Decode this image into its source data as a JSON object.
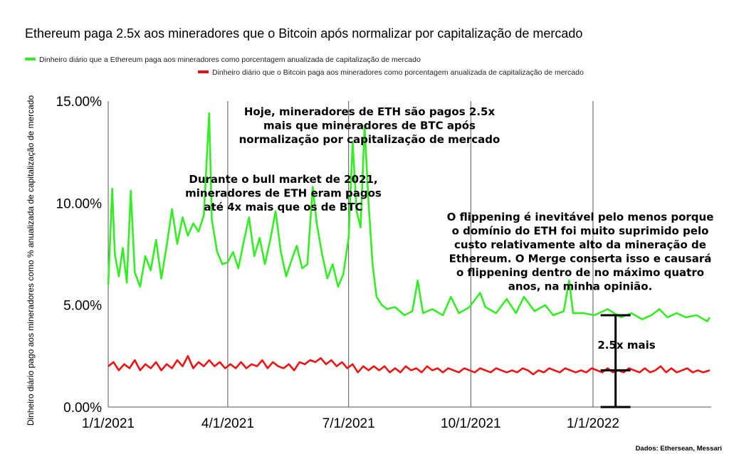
{
  "chart_data": {
    "type": "line",
    "title": "Ethereum paga 2.5x aos mineradores que o Bitcoin após normalizar por capitalização de mercado",
    "ylabel": "Dinheiro diário pago aos mineradores como % anualizada de capitalização de mercado",
    "xlabel": "",
    "x_ticks": [
      "1/1/2021",
      "4/1/2021",
      "7/1/2021",
      "10/1/2021",
      "1/1/2022"
    ],
    "y_ticks": [
      "0.00%",
      "5.00%",
      "10.00%",
      "15.00%"
    ],
    "ylim": [
      0,
      15
    ],
    "xlim": [
      "2021-01-01",
      "2022-03-31"
    ],
    "grid": "vertical",
    "legend": "top-left",
    "series": [
      {
        "name": "Dinheiro diário que a Ethereum paga aos mineradores como porcentagem anualizada de capitalização de mercado",
        "color": "#33ee22",
        "points": [
          [
            "2021-01-01",
            6.0
          ],
          [
            "2021-01-04",
            10.7
          ],
          [
            "2021-01-06",
            7.5
          ],
          [
            "2021-01-09",
            6.4
          ],
          [
            "2021-01-12",
            7.8
          ],
          [
            "2021-01-15",
            6.1
          ],
          [
            "2021-01-18",
            10.6
          ],
          [
            "2021-01-21",
            6.6
          ],
          [
            "2021-01-25",
            5.9
          ],
          [
            "2021-01-29",
            7.4
          ],
          [
            "2021-02-02",
            6.7
          ],
          [
            "2021-02-06",
            8.2
          ],
          [
            "2021-02-10",
            6.3
          ],
          [
            "2021-02-14",
            7.9
          ],
          [
            "2021-02-18",
            9.7
          ],
          [
            "2021-02-22",
            8.0
          ],
          [
            "2021-02-26",
            9.3
          ],
          [
            "2021-03-02",
            8.4
          ],
          [
            "2021-03-06",
            9.0
          ],
          [
            "2021-03-10",
            8.6
          ],
          [
            "2021-03-14",
            9.4
          ],
          [
            "2021-03-18",
            14.4
          ],
          [
            "2021-03-20",
            9.2
          ],
          [
            "2021-03-24",
            7.6
          ],
          [
            "2021-03-28",
            7.0
          ],
          [
            "2021-04-01",
            7.1
          ],
          [
            "2021-04-05",
            7.6
          ],
          [
            "2021-04-09",
            6.8
          ],
          [
            "2021-04-13",
            8.1
          ],
          [
            "2021-04-17",
            9.3
          ],
          [
            "2021-04-21",
            7.4
          ],
          [
            "2021-04-25",
            8.3
          ],
          [
            "2021-04-29",
            7.0
          ],
          [
            "2021-05-03",
            8.2
          ],
          [
            "2021-05-07",
            9.6
          ],
          [
            "2021-05-11",
            7.6
          ],
          [
            "2021-05-15",
            6.4
          ],
          [
            "2021-05-19",
            7.2
          ],
          [
            "2021-05-23",
            7.9
          ],
          [
            "2021-05-27",
            6.8
          ],
          [
            "2021-05-31",
            7.0
          ],
          [
            "2021-06-04",
            10.8
          ],
          [
            "2021-06-07",
            9.0
          ],
          [
            "2021-06-11",
            7.5
          ],
          [
            "2021-06-15",
            6.3
          ],
          [
            "2021-06-19",
            7.0
          ],
          [
            "2021-06-23",
            5.9
          ],
          [
            "2021-06-27",
            6.5
          ],
          [
            "2021-07-01",
            8.3
          ],
          [
            "2021-07-04",
            13.0
          ],
          [
            "2021-07-07",
            9.6
          ],
          [
            "2021-07-10",
            8.8
          ],
          [
            "2021-07-13",
            13.8
          ],
          [
            "2021-07-16",
            10.0
          ],
          [
            "2021-07-19",
            7.0
          ],
          [
            "2021-07-22",
            5.4
          ],
          [
            "2021-07-26",
            5.0
          ],
          [
            "2021-07-30",
            4.8
          ],
          [
            "2021-08-05",
            4.9
          ],
          [
            "2021-08-12",
            4.5
          ],
          [
            "2021-08-18",
            4.7
          ],
          [
            "2021-08-22",
            6.2
          ],
          [
            "2021-08-26",
            4.6
          ],
          [
            "2021-09-02",
            4.8
          ],
          [
            "2021-09-10",
            4.5
          ],
          [
            "2021-09-16",
            5.4
          ],
          [
            "2021-09-22",
            4.6
          ],
          [
            "2021-09-30",
            4.9
          ],
          [
            "2021-10-08",
            5.6
          ],
          [
            "2021-10-12",
            4.9
          ],
          [
            "2021-10-20",
            4.6
          ],
          [
            "2021-10-28",
            5.3
          ],
          [
            "2021-11-04",
            4.6
          ],
          [
            "2021-11-10",
            5.4
          ],
          [
            "2021-11-18",
            4.7
          ],
          [
            "2021-11-26",
            5.0
          ],
          [
            "2021-12-02",
            4.5
          ],
          [
            "2021-12-10",
            4.7
          ],
          [
            "2021-12-14",
            6.2
          ],
          [
            "2021-12-17",
            4.6
          ],
          [
            "2021-12-25",
            4.6
          ],
          [
            "2022-01-02",
            4.5
          ],
          [
            "2022-01-12",
            4.8
          ],
          [
            "2022-01-22",
            4.4
          ],
          [
            "2022-01-30",
            4.6
          ],
          [
            "2022-02-07",
            4.3
          ],
          [
            "2022-02-14",
            4.5
          ],
          [
            "2022-02-20",
            4.8
          ],
          [
            "2022-02-26",
            4.4
          ],
          [
            "2022-03-05",
            4.6
          ],
          [
            "2022-03-12",
            4.4
          ],
          [
            "2022-03-20",
            4.5
          ],
          [
            "2022-03-28",
            4.2
          ],
          [
            "2022-03-30",
            4.4
          ]
        ]
      },
      {
        "name": "Dinheiro diário que o Bitcoin paga aos mineradores como porcentagem anualizada de capitalização de mercado",
        "color": "#ee1111",
        "points": [
          [
            "2021-01-01",
            2.0
          ],
          [
            "2021-01-05",
            2.2
          ],
          [
            "2021-01-09",
            1.8
          ],
          [
            "2021-01-13",
            2.1
          ],
          [
            "2021-01-17",
            1.9
          ],
          [
            "2021-01-21",
            2.3
          ],
          [
            "2021-01-25",
            1.8
          ],
          [
            "2021-01-29",
            2.1
          ],
          [
            "2021-02-02",
            1.9
          ],
          [
            "2021-02-06",
            2.2
          ],
          [
            "2021-02-10",
            1.8
          ],
          [
            "2021-02-14",
            2.1
          ],
          [
            "2021-02-18",
            1.9
          ],
          [
            "2021-02-22",
            2.3
          ],
          [
            "2021-02-26",
            2.0
          ],
          [
            "2021-03-02",
            2.5
          ],
          [
            "2021-03-06",
            1.9
          ],
          [
            "2021-03-10",
            2.2
          ],
          [
            "2021-03-14",
            2.0
          ],
          [
            "2021-03-18",
            2.3
          ],
          [
            "2021-03-22",
            2.0
          ],
          [
            "2021-03-26",
            2.2
          ],
          [
            "2021-03-30",
            1.9
          ],
          [
            "2021-04-03",
            2.1
          ],
          [
            "2021-04-07",
            1.9
          ],
          [
            "2021-04-11",
            2.2
          ],
          [
            "2021-04-15",
            1.9
          ],
          [
            "2021-04-19",
            2.1
          ],
          [
            "2021-04-23",
            2.0
          ],
          [
            "2021-04-27",
            2.3
          ],
          [
            "2021-05-01",
            1.9
          ],
          [
            "2021-05-05",
            2.2
          ],
          [
            "2021-05-09",
            2.0
          ],
          [
            "2021-05-13",
            1.9
          ],
          [
            "2021-05-17",
            2.1
          ],
          [
            "2021-05-21",
            1.8
          ],
          [
            "2021-05-25",
            2.2
          ],
          [
            "2021-05-29",
            2.1
          ],
          [
            "2021-06-02",
            2.3
          ],
          [
            "2021-06-06",
            2.2
          ],
          [
            "2021-06-10",
            2.4
          ],
          [
            "2021-06-14",
            2.1
          ],
          [
            "2021-06-18",
            2.3
          ],
          [
            "2021-06-22",
            2.0
          ],
          [
            "2021-06-26",
            2.2
          ],
          [
            "2021-06-30",
            1.9
          ],
          [
            "2021-07-04",
            2.1
          ],
          [
            "2021-07-08",
            1.7
          ],
          [
            "2021-07-12",
            2.0
          ],
          [
            "2021-07-16",
            1.8
          ],
          [
            "2021-07-20",
            2.0
          ],
          [
            "2021-07-24",
            1.8
          ],
          [
            "2021-07-28",
            2.0
          ],
          [
            "2021-08-01",
            1.7
          ],
          [
            "2021-08-05",
            1.9
          ],
          [
            "2021-08-09",
            1.7
          ],
          [
            "2021-08-13",
            2.0
          ],
          [
            "2021-08-17",
            1.8
          ],
          [
            "2021-08-21",
            1.9
          ],
          [
            "2021-08-25",
            1.7
          ],
          [
            "2021-08-29",
            2.0
          ],
          [
            "2021-09-02",
            1.8
          ],
          [
            "2021-09-06",
            1.9
          ],
          [
            "2021-09-10",
            1.7
          ],
          [
            "2021-09-14",
            1.9
          ],
          [
            "2021-09-18",
            1.8
          ],
          [
            "2021-09-22",
            1.7
          ],
          [
            "2021-09-26",
            1.9
          ],
          [
            "2021-09-30",
            1.8
          ],
          [
            "2021-10-04",
            1.7
          ],
          [
            "2021-10-08",
            1.9
          ],
          [
            "2021-10-12",
            1.8
          ],
          [
            "2021-10-16",
            1.7
          ],
          [
            "2021-10-20",
            1.9
          ],
          [
            "2021-10-24",
            1.8
          ],
          [
            "2021-10-28",
            1.7
          ],
          [
            "2021-11-01",
            1.8
          ],
          [
            "2021-11-05",
            1.7
          ],
          [
            "2021-11-09",
            1.9
          ],
          [
            "2021-11-13",
            1.8
          ],
          [
            "2021-11-17",
            1.6
          ],
          [
            "2021-11-21",
            1.8
          ],
          [
            "2021-11-25",
            1.7
          ],
          [
            "2021-11-29",
            1.9
          ],
          [
            "2021-12-03",
            1.8
          ],
          [
            "2021-12-07",
            1.7
          ],
          [
            "2021-12-11",
            1.9
          ],
          [
            "2021-12-15",
            1.8
          ],
          [
            "2021-12-19",
            1.7
          ],
          [
            "2021-12-23",
            1.8
          ],
          [
            "2021-12-27",
            1.7
          ],
          [
            "2021-12-31",
            1.9
          ],
          [
            "2022-01-04",
            1.8
          ],
          [
            "2022-01-08",
            1.7
          ],
          [
            "2022-01-12",
            1.9
          ],
          [
            "2022-01-16",
            1.7
          ],
          [
            "2022-01-20",
            1.8
          ],
          [
            "2022-01-24",
            1.7
          ],
          [
            "2022-01-28",
            1.9
          ],
          [
            "2022-02-01",
            1.8
          ],
          [
            "2022-02-05",
            1.7
          ],
          [
            "2022-02-09",
            1.9
          ],
          [
            "2022-02-13",
            1.7
          ],
          [
            "2022-02-17",
            1.8
          ],
          [
            "2022-02-21",
            2.0
          ],
          [
            "2022-02-25",
            1.7
          ],
          [
            "2022-03-01",
            1.9
          ],
          [
            "2022-03-05",
            1.7
          ],
          [
            "2022-03-09",
            1.8
          ],
          [
            "2022-03-13",
            1.9
          ],
          [
            "2022-03-17",
            1.7
          ],
          [
            "2022-03-21",
            1.8
          ],
          [
            "2022-03-25",
            1.7
          ],
          [
            "2022-03-30",
            1.8
          ]
        ]
      }
    ],
    "annotations": [
      {
        "lines": [
          "Hoje, mineradores de ETH são pagos 2.5x",
          "mais que mineradores de BTC após",
          "normalização por capitalização de mercado"
        ]
      },
      {
        "lines": [
          "Durante o bull market de 2021,",
          "mineradores de ETH eram pagos",
          "até 4x mais que os de BTC"
        ]
      },
      {
        "lines": [
          "O flippening é inevitável pelo menos porque",
          "o domínio do ETH foi muito suprimido pelo",
          "custo relativamente alto da mineração de",
          "Ethereum. O Merge conserta isso e causará",
          "o flippening dentro de no máximo quatro",
          "anos, na minha opinião."
        ]
      },
      {
        "lines": [
          "2.5x mais"
        ]
      }
    ],
    "bracket": {
      "x": "2022-01-18",
      "y_values": [
        4.5,
        1.8,
        0.0
      ]
    },
    "source": "Dados: Ethersean, Messari"
  }
}
